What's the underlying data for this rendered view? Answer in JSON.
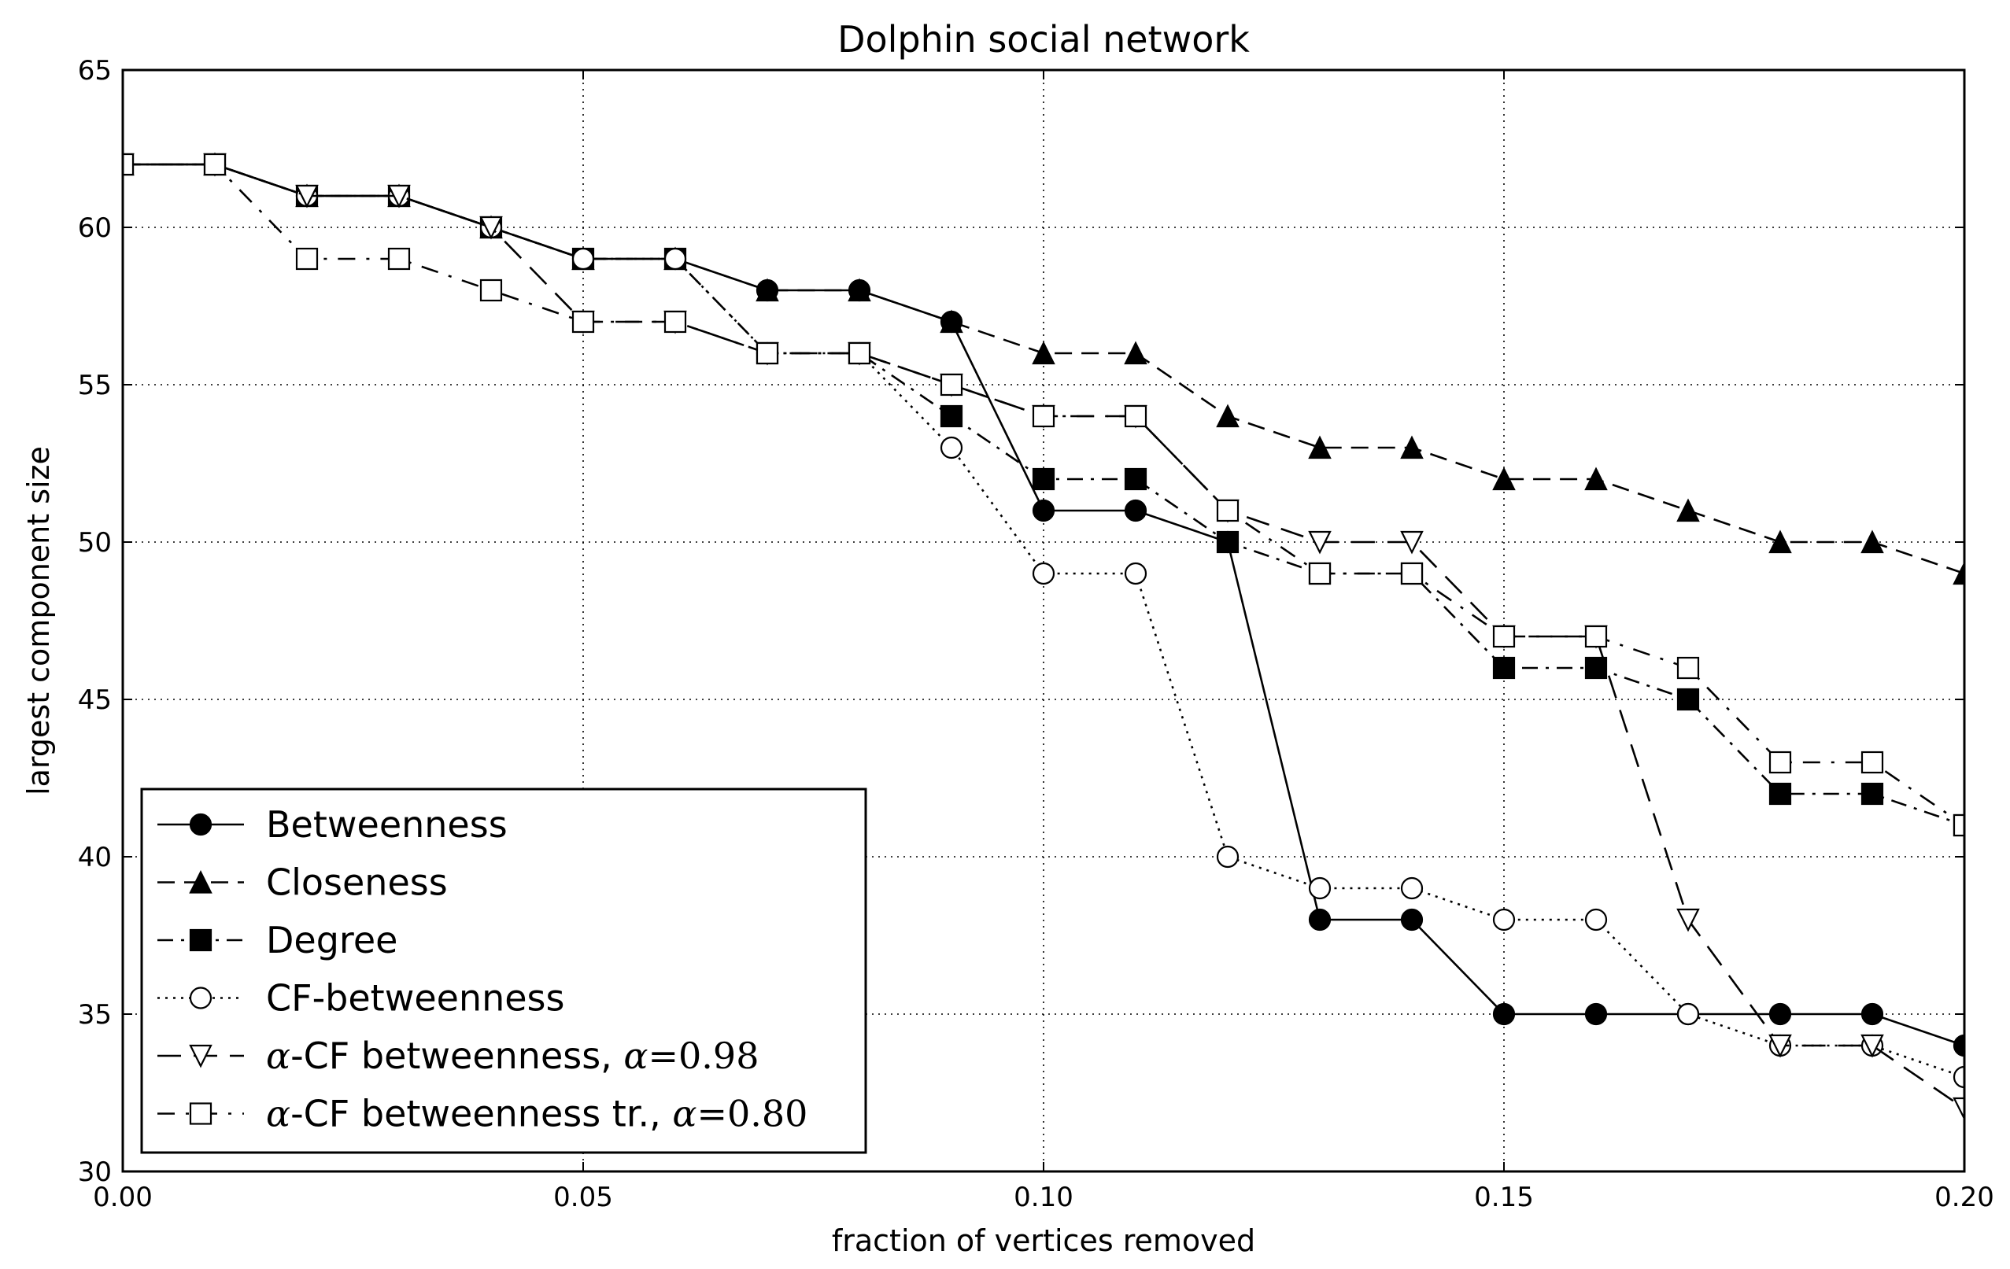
{
  "chart_data": {
    "type": "line",
    "title": "Dolphin social network",
    "xlabel": "fraction of vertices removed",
    "ylabel": "largest component size",
    "xlim": [
      0.0,
      0.2
    ],
    "ylim": [
      30,
      65
    ],
    "grid": true,
    "legend_position": "bottom-left",
    "x_ticks": [
      "0.00",
      "0.05",
      "0.10",
      "0.15",
      "0.20"
    ],
    "y_ticks": [
      "30",
      "35",
      "40",
      "45",
      "50",
      "55",
      "60",
      "65"
    ],
    "x": [
      0.0,
      0.01,
      0.02,
      0.03,
      0.04,
      0.05,
      0.06,
      0.07,
      0.08,
      0.09,
      0.1,
      0.11,
      0.12,
      0.13,
      0.14,
      0.15,
      0.16,
      0.17,
      0.18,
      0.19,
      0.2
    ],
    "series": [
      {
        "name": "Betweenness",
        "label_parts": [
          "Betweenness"
        ],
        "marker": "circle-filled",
        "linestyle": "solid",
        "values": [
          62,
          62,
          61,
          61,
          60,
          59,
          59,
          58,
          58,
          57,
          51,
          51,
          50,
          38,
          38,
          35,
          35,
          35,
          35,
          35,
          34
        ]
      },
      {
        "name": "Closeness",
        "label_parts": [
          "Closeness"
        ],
        "marker": "triangle-up-filled",
        "linestyle": "dashed",
        "values": [
          62,
          62,
          61,
          61,
          60,
          59,
          59,
          58,
          58,
          57,
          56,
          56,
          54,
          53,
          53,
          52,
          52,
          51,
          50,
          50,
          49
        ]
      },
      {
        "name": "Degree",
        "label_parts": [
          "Degree"
        ],
        "marker": "square-filled",
        "linestyle": "dashdot",
        "values": [
          62,
          62,
          61,
          61,
          60,
          59,
          59,
          56,
          56,
          54,
          52,
          52,
          50,
          49,
          49,
          46,
          46,
          45,
          42,
          42,
          41
        ]
      },
      {
        "name": "CF-betweenness",
        "label_parts": [
          "CF-betweenness"
        ],
        "marker": "circle-open",
        "linestyle": "dotted",
        "values": [
          62,
          62,
          61,
          61,
          60,
          59,
          59,
          56,
          56,
          53,
          49,
          49,
          40,
          39,
          39,
          38,
          38,
          35,
          34,
          34,
          33
        ]
      },
      {
        "name": "α-CF betweenness, α=0.98",
        "label_parts": [
          "α",
          "-CF betweenness, ",
          "α",
          "=0.98"
        ],
        "marker": "triangle-down-open",
        "linestyle": "longdash",
        "values": [
          62,
          62,
          61,
          61,
          60,
          57,
          57,
          56,
          56,
          55,
          54,
          54,
          51,
          50,
          50,
          47,
          47,
          38,
          34,
          34,
          32
        ]
      },
      {
        "name": "α-CF betweenness tr., α=0.80",
        "label_parts": [
          "α",
          "-CF betweenness tr., ",
          "α",
          "=0.80"
        ],
        "marker": "square-open",
        "linestyle": "dashdot-sparse",
        "values": [
          62,
          62,
          59,
          59,
          58,
          57,
          57,
          56,
          56,
          55,
          54,
          54,
          51,
          49,
          49,
          47,
          47,
          46,
          43,
          43,
          41
        ]
      }
    ]
  }
}
